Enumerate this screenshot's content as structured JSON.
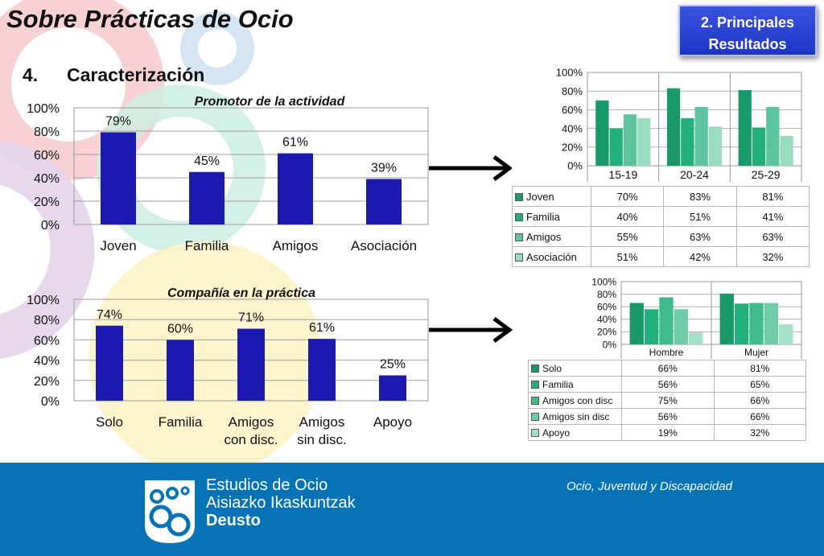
{
  "header": {
    "title": "Sobre Prácticas de Ocio",
    "section_badge": [
      "2. Principales",
      "Resultados"
    ],
    "heading_number": "4.",
    "heading_text": "Caracterización"
  },
  "footer": {
    "org_lines": [
      "Estudios de Ocio",
      "Aisiazko Ikaskuntzak",
      "Deusto"
    ],
    "tagline": "Ocio, Juventud y Discapacidad"
  },
  "chart_data": [
    {
      "type": "bar",
      "title": "Promotor de la actividad",
      "categories": [
        "Joven",
        "Familia",
        "Amigos",
        "Asociación"
      ],
      "values": [
        79,
        45,
        61,
        39
      ],
      "data_labels": [
        "79%",
        "45%",
        "61%",
        "39%"
      ],
      "yticks": [
        "0%",
        "20%",
        "40%",
        "60%",
        "80%",
        "100%"
      ],
      "ylim": [
        0,
        100
      ],
      "color": "#1a1ab0"
    },
    {
      "type": "bar",
      "title": "Compañía en la práctica",
      "categories": [
        [
          "Solo"
        ],
        [
          "Familia"
        ],
        [
          "Amigos",
          "con disc."
        ],
        [
          "Amigos",
          "sin disc."
        ],
        [
          "Apoyo"
        ]
      ],
      "values": [
        74,
        60,
        71,
        61,
        25
      ],
      "data_labels": [
        "74%",
        "60%",
        "71%",
        "61%",
        "25%"
      ],
      "yticks": [
        "0%",
        "20%",
        "40%",
        "60%",
        "80%",
        "100%"
      ],
      "ylim": [
        0,
        100
      ],
      "color": "#1a1ab0"
    },
    {
      "type": "bar",
      "categories": [
        "15-19",
        "20-24",
        "25-29"
      ],
      "yticks": [
        "0%",
        "20%",
        "40%",
        "60%",
        "80%",
        "100%"
      ],
      "ylim": [
        0,
        100
      ],
      "legend": "table-below",
      "series": [
        {
          "name": "Joven",
          "values": [
            70,
            83,
            81
          ],
          "labels": [
            "70%",
            "83%",
            "81%"
          ],
          "color": "#1a9a6a"
        },
        {
          "name": "Familia",
          "values": [
            40,
            51,
            41
          ],
          "labels": [
            "40%",
            "51%",
            "41%"
          ],
          "color": "#22b07c"
        },
        {
          "name": "Amigos",
          "values": [
            55,
            63,
            63
          ],
          "labels": [
            "55%",
            "63%",
            "63%"
          ],
          "color": "#5cc49e"
        },
        {
          "name": "Asociación",
          "values": [
            51,
            42,
            32
          ],
          "labels": [
            "51%",
            "42%",
            "32%"
          ],
          "color": "#9adcc0"
        }
      ]
    },
    {
      "type": "bar",
      "categories": [
        "Hombre",
        "Mujer"
      ],
      "yticks": [
        "0%",
        "20%",
        "40%",
        "60%",
        "80%",
        "100%"
      ],
      "ylim": [
        0,
        100
      ],
      "legend": "table-below",
      "series": [
        {
          "name": "Solo",
          "values": [
            66,
            81
          ],
          "labels": [
            "66%",
            "81%"
          ],
          "color": "#1a9a6a"
        },
        {
          "name": "Familia",
          "values": [
            56,
            65
          ],
          "labels": [
            "56%",
            "65%"
          ],
          "color": "#22b07c"
        },
        {
          "name": "Amigos con disc",
          "values": [
            75,
            66
          ],
          "labels": [
            "75%",
            "66%"
          ],
          "color": "#3fbb8c"
        },
        {
          "name": "Amigos sin disc",
          "values": [
            56,
            66
          ],
          "labels": [
            "56%",
            "66%"
          ],
          "color": "#6fcca8"
        },
        {
          "name": "Apoyo",
          "values": [
            19,
            32
          ],
          "labels": [
            "19%",
            "32%"
          ],
          "color": "#a6e0c8"
        }
      ]
    }
  ]
}
